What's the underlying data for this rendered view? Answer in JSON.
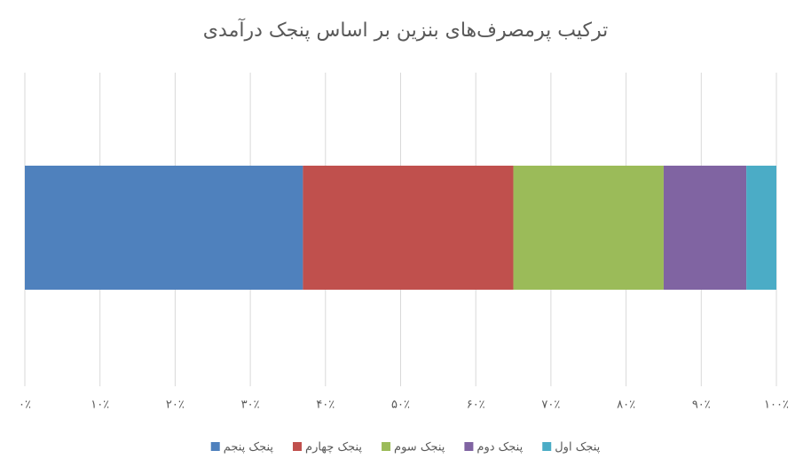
{
  "chart_data": {
    "type": "bar",
    "orientation": "horizontal",
    "stacked": true,
    "title": "ترکیب پرمصرف‌های بنزین بر اساس پنجک درآمدی",
    "series": [
      {
        "name": "پنجک پنجم",
        "color": "#4f81bd",
        "values": [
          37
        ]
      },
      {
        "name": "پنجک چهارم",
        "color": "#c0504d",
        "values": [
          28
        ]
      },
      {
        "name": "پنجک سوم",
        "color": "#9bbb59",
        "values": [
          20
        ]
      },
      {
        "name": "پنجک دوم",
        "color": "#8064a2",
        "values": [
          11
        ]
      },
      {
        "name": "پنجک اول",
        "color": "#4bacc6",
        "values": [
          4
        ]
      }
    ],
    "xlim": [
      0,
      100
    ],
    "xticks": [
      {
        "value": 0,
        "label": "۰٪"
      },
      {
        "value": 10,
        "label": "۱۰٪"
      },
      {
        "value": 20,
        "label": "۲۰٪"
      },
      {
        "value": 30,
        "label": "۳۰٪"
      },
      {
        "value": 40,
        "label": "۴۰٪"
      },
      {
        "value": 50,
        "label": "۵۰٪"
      },
      {
        "value": 60,
        "label": "۶۰٪"
      },
      {
        "value": 70,
        "label": "۷۰٪"
      },
      {
        "value": 80,
        "label": "۸۰٪"
      },
      {
        "value": 90,
        "label": "۹۰٪"
      },
      {
        "value": 100,
        "label": "۱۰۰٪"
      }
    ],
    "grid": true,
    "legend": "bottom"
  }
}
